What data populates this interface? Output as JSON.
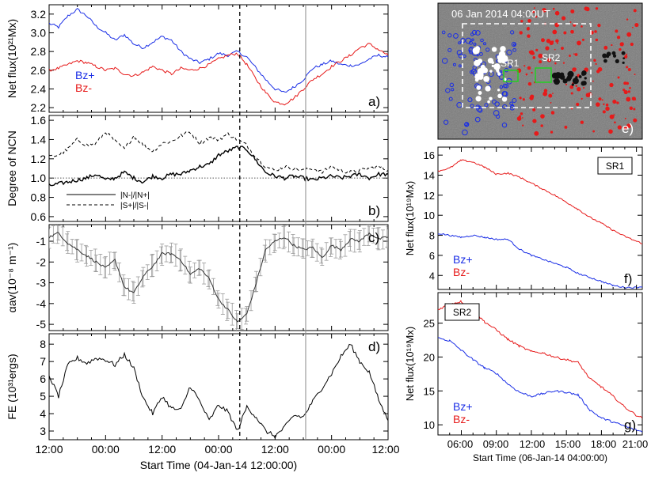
{
  "colors": {
    "bz_plus": "#1a2ee6",
    "bz_minus": "#e61a1a",
    "gray_line": "#8a8a8a",
    "errbar": "#9a9a9a"
  },
  "left": {
    "x_ticks": [
      "12:00",
      "00:00",
      "12:00",
      "00:00",
      "12:00",
      "00:00",
      "12:00"
    ],
    "x_label": "Start Time (04-Jan-14 12:00:00)",
    "event_hour": 40.5,
    "gray_hour": 54.5
  },
  "chart_data": [
    {
      "type": "line",
      "panel": "a)",
      "ylabel": "Net flux(10²¹Mx)",
      "ylim": [
        2.15,
        3.3
      ],
      "y_ticks": [
        "2.2",
        "2.4",
        "2.6",
        "2.8",
        "3.0",
        "3.2"
      ],
      "y_tick_values": [
        2.2,
        2.4,
        2.6,
        2.8,
        3.0,
        3.2
      ],
      "legend": [
        "Bz+",
        "Bz-"
      ],
      "x_hours": [
        0,
        2,
        4,
        6,
        8,
        10,
        12,
        14,
        16,
        18,
        20,
        22,
        24,
        26,
        28,
        30,
        32,
        34,
        36,
        38,
        40,
        42,
        44,
        46,
        48,
        50,
        52,
        54,
        56,
        58,
        60,
        62,
        64,
        66,
        68,
        70,
        72
      ],
      "series": [
        {
          "name": "Bz+",
          "values": [
            3.1,
            3.06,
            3.18,
            3.25,
            3.18,
            3.07,
            3.0,
            2.92,
            2.98,
            2.88,
            2.84,
            2.9,
            2.96,
            2.92,
            2.8,
            2.72,
            2.68,
            2.72,
            2.78,
            2.76,
            2.8,
            2.74,
            2.62,
            2.5,
            2.4,
            2.36,
            2.42,
            2.5,
            2.62,
            2.66,
            2.7,
            2.66,
            2.65,
            2.66,
            2.72,
            2.76,
            2.74
          ]
        },
        {
          "name": "Bz-",
          "values": [
            2.6,
            2.62,
            2.66,
            2.7,
            2.68,
            2.64,
            2.6,
            2.62,
            2.56,
            2.54,
            2.58,
            2.64,
            2.6,
            2.56,
            2.62,
            2.6,
            2.62,
            2.66,
            2.72,
            2.76,
            2.78,
            2.66,
            2.5,
            2.36,
            2.26,
            2.24,
            2.3,
            2.4,
            2.5,
            2.56,
            2.64,
            2.7,
            2.76,
            2.84,
            2.88,
            2.82,
            2.76
          ]
        }
      ]
    },
    {
      "type": "line",
      "panel": "b)",
      "ylabel": "Degree of NCN",
      "ylim": [
        0.55,
        1.65
      ],
      "y_ticks": [
        "0.6",
        "0.8",
        "1.0",
        "1.2",
        "1.4",
        "1.6"
      ],
      "y_tick_values": [
        0.6,
        0.8,
        1.0,
        1.2,
        1.4,
        1.6
      ],
      "ref_line": 1.0,
      "legend": [
        "|N-|/|N+|",
        "|S+|/|S-|"
      ],
      "x_hours": [
        0,
        2,
        4,
        6,
        8,
        10,
        12,
        14,
        16,
        18,
        20,
        22,
        24,
        26,
        28,
        30,
        32,
        34,
        36,
        38,
        40,
        42,
        44,
        46,
        48,
        50,
        52,
        54,
        56,
        58,
        60,
        62,
        64,
        66,
        68,
        70,
        72
      ],
      "series": [
        {
          "name": "|N-|/|N+|",
          "values": [
            0.92,
            0.94,
            0.96,
            0.98,
            1.0,
            1.04,
            0.98,
            1.0,
            1.06,
            1.0,
            0.96,
            1.02,
            1.0,
            1.04,
            1.04,
            1.08,
            1.12,
            1.14,
            1.24,
            1.28,
            1.32,
            1.3,
            1.18,
            1.06,
            1.02,
            1.0,
            1.02,
            1.0,
            0.98,
            1.0,
            1.02,
            1.0,
            1.02,
            1.04,
            1.0,
            1.04,
            1.04
          ]
        },
        {
          "name": "|S+|/|S-|",
          "values": [
            1.22,
            1.24,
            1.3,
            1.4,
            1.34,
            1.36,
            1.48,
            1.38,
            1.3,
            1.44,
            1.34,
            1.28,
            1.36,
            1.38,
            1.44,
            1.48,
            1.36,
            1.42,
            1.4,
            1.46,
            1.4,
            1.34,
            1.22,
            1.12,
            1.08,
            1.12,
            1.1,
            1.08,
            1.1,
            1.06,
            1.12,
            1.08,
            1.06,
            1.08,
            1.1,
            1.12,
            1.08
          ]
        }
      ]
    },
    {
      "type": "line",
      "panel": "c)",
      "ylabel": "αav(10⁻⁸ m⁻¹)",
      "ylim": [
        -5.3,
        -0.2
      ],
      "y_ticks": [
        "-1",
        "-2",
        "-3",
        "-4",
        "-5"
      ],
      "y_tick_values": [
        -1,
        -2,
        -3,
        -4,
        -5
      ],
      "x_hours": [
        0,
        2,
        4,
        6,
        8,
        10,
        12,
        14,
        16,
        18,
        20,
        22,
        24,
        26,
        28,
        30,
        32,
        34,
        36,
        38,
        40,
        42,
        44,
        46,
        48,
        50,
        52,
        54,
        56,
        58,
        60,
        62,
        64,
        66,
        68,
        70,
        72
      ],
      "series": [
        {
          "name": "αav",
          "values": [
            -0.8,
            -0.6,
            -1.1,
            -1.4,
            -1.7,
            -2.0,
            -2.3,
            -1.9,
            -3.2,
            -3.5,
            -2.7,
            -2.2,
            -1.6,
            -1.6,
            -1.9,
            -2.6,
            -2.3,
            -2.8,
            -3.8,
            -4.3,
            -4.9,
            -4.5,
            -3.0,
            -1.4,
            -1.0,
            -0.8,
            -1.2,
            -1.4,
            -1.3,
            -1.8,
            -1.2,
            -1.4,
            -0.9,
            -1.0,
            -0.6,
            -0.9,
            -0.8
          ]
        }
      ]
    },
    {
      "type": "line",
      "panel": "d)",
      "ylabel": "FE (10³¹ergs)",
      "ylim": [
        2.5,
        8.6
      ],
      "y_ticks": [
        "3",
        "4",
        "5",
        "6",
        "7",
        "8"
      ],
      "y_tick_values": [
        3,
        4,
        5,
        6,
        7,
        8
      ],
      "x_hours": [
        0,
        2,
        4,
        6,
        8,
        10,
        12,
        14,
        16,
        18,
        20,
        22,
        24,
        26,
        28,
        30,
        32,
        34,
        36,
        38,
        40,
        42,
        44,
        46,
        48,
        50,
        52,
        54,
        56,
        58,
        60,
        62,
        64,
        66,
        68,
        70,
        72
      ],
      "series": [
        {
          "name": "FE",
          "values": [
            6.2,
            5.0,
            6.8,
            7.2,
            6.9,
            7.2,
            7.1,
            6.8,
            7.4,
            6.6,
            4.9,
            4.0,
            5.0,
            4.3,
            4.2,
            5.6,
            4.7,
            3.6,
            4.5,
            4.1,
            3.0,
            4.4,
            3.8,
            3.0,
            2.7,
            3.2,
            3.9,
            3.8,
            4.7,
            5.5,
            6.3,
            7.3,
            8.0,
            7.0,
            6.4,
            4.8,
            3.6
          ]
        }
      ]
    },
    {
      "type": "line",
      "panel": "f)",
      "label_box": "SR1",
      "ylabel": "Net flux(10¹⁹Mx)",
      "ylim": [
        2.6,
        16.8
      ],
      "y_ticks": [
        "4",
        "6",
        "8",
        "10",
        "12",
        "14",
        "16"
      ],
      "y_tick_values": [
        4,
        6,
        8,
        10,
        12,
        14,
        16
      ],
      "legend": [
        "Bz+",
        "Bz-"
      ],
      "x_hours": [
        4,
        5,
        6,
        7,
        8,
        9,
        10,
        11,
        12,
        13,
        14,
        15,
        16,
        17,
        18,
        19,
        20,
        21,
        21.5
      ],
      "series": [
        {
          "name": "Bz+",
          "values": [
            8.2,
            8.0,
            7.8,
            8.0,
            7.8,
            7.6,
            7.6,
            6.6,
            6.0,
            5.6,
            5.2,
            4.8,
            4.2,
            3.8,
            3.4,
            3.0,
            2.8,
            2.8,
            2.9
          ]
        },
        {
          "name": "Bz-",
          "values": [
            14.4,
            14.7,
            15.5,
            15.3,
            14.8,
            14.1,
            14.2,
            13.8,
            13.2,
            12.6,
            12.0,
            11.3,
            10.6,
            9.8,
            9.2,
            8.5,
            7.9,
            7.4,
            7.2
          ]
        }
      ]
    },
    {
      "type": "line",
      "panel": "g)",
      "label_box": "SR2",
      "ylabel": "Net flux(10¹⁹Mx)",
      "ylim": [
        8.5,
        29.5
      ],
      "y_ticks": [
        "10",
        "15",
        "20",
        "25"
      ],
      "y_tick_values": [
        10,
        15,
        20,
        25
      ],
      "legend": [
        "Bz+",
        "Bz-"
      ],
      "x_ticks": [
        "06:00",
        "09:00",
        "12:00",
        "15:00",
        "18:00",
        "21:00"
      ],
      "xlabel": "Start Time (06-Jan-14 04:00:00)",
      "x_hours": [
        4,
        5,
        6,
        7,
        8,
        9,
        10,
        11,
        12,
        13,
        14,
        15,
        16,
        17,
        18,
        19,
        20,
        21,
        21.5
      ],
      "series": [
        {
          "name": "Bz+",
          "values": [
            22.8,
            22.4,
            21.0,
            19.6,
            18.4,
            17.6,
            16.0,
            14.8,
            14.2,
            14.6,
            15.0,
            14.8,
            14.4,
            12.2,
            11.0,
            10.4,
            9.8,
            9.2,
            9.0
          ]
        },
        {
          "name": "Bz-",
          "values": [
            27.0,
            27.8,
            28.2,
            26.8,
            25.2,
            24.0,
            22.6,
            21.6,
            20.8,
            20.6,
            20.0,
            19.6,
            19.2,
            16.8,
            15.6,
            14.2,
            12.6,
            11.4,
            11.0
          ]
        }
      ]
    }
  ],
  "magnetogram": {
    "title": "06 Jan 2014 04:00UT",
    "label_sr1": "SR1",
    "label_sr2": "SR2",
    "panel": "e)"
  }
}
